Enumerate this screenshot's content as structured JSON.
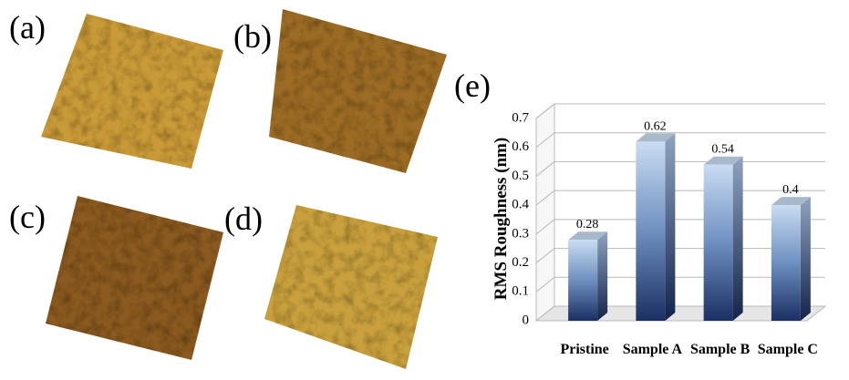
{
  "panels": [
    "(a)",
    "(b)",
    "(c)",
    "(d)",
    "(e)"
  ],
  "chart_data": {
    "type": "bar3d",
    "ylabel": "RMS Roughness (nm)",
    "categories": [
      "Pristine",
      "Sample A",
      "Sample B",
      "Sample C"
    ],
    "values": [
      0.28,
      0.62,
      0.54,
      0.4
    ],
    "ylim": [
      0,
      0.7
    ],
    "yticks": [
      0,
      0.1,
      0.2,
      0.3,
      0.4,
      0.5,
      0.6,
      0.7
    ],
    "grid": true
  }
}
